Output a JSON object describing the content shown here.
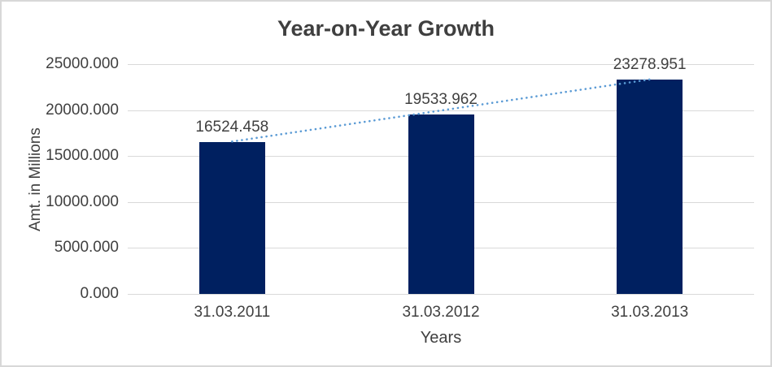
{
  "chart_data": {
    "type": "bar",
    "title": "Year-on-Year Growth",
    "xlabel": "Years",
    "ylabel": "Amt. in Millions",
    "categories": [
      "31.03.2011",
      "31.03.2012",
      "31.03.2013"
    ],
    "values": [
      16524.458,
      19533.962,
      23278.951
    ],
    "data_labels": [
      "16524.458",
      "19533.962",
      "23278.951"
    ],
    "ylim": [
      0,
      25000
    ],
    "ytick_step": 5000,
    "ytick_labels": [
      "0.000",
      "5000.000",
      "10000.000",
      "15000.000",
      "20000.000",
      "25000.000"
    ],
    "grid": true,
    "legend": "none",
    "trendline": {
      "type": "linear",
      "style": "dotted"
    },
    "colors": {
      "bar": "#002060",
      "trendline": "#5B9BD5",
      "grid": "#D9D9D9",
      "text": "#404040",
      "title_text": "#3F3F3F",
      "border": "#D8D8D8",
      "background": "#FFFFFF"
    }
  }
}
